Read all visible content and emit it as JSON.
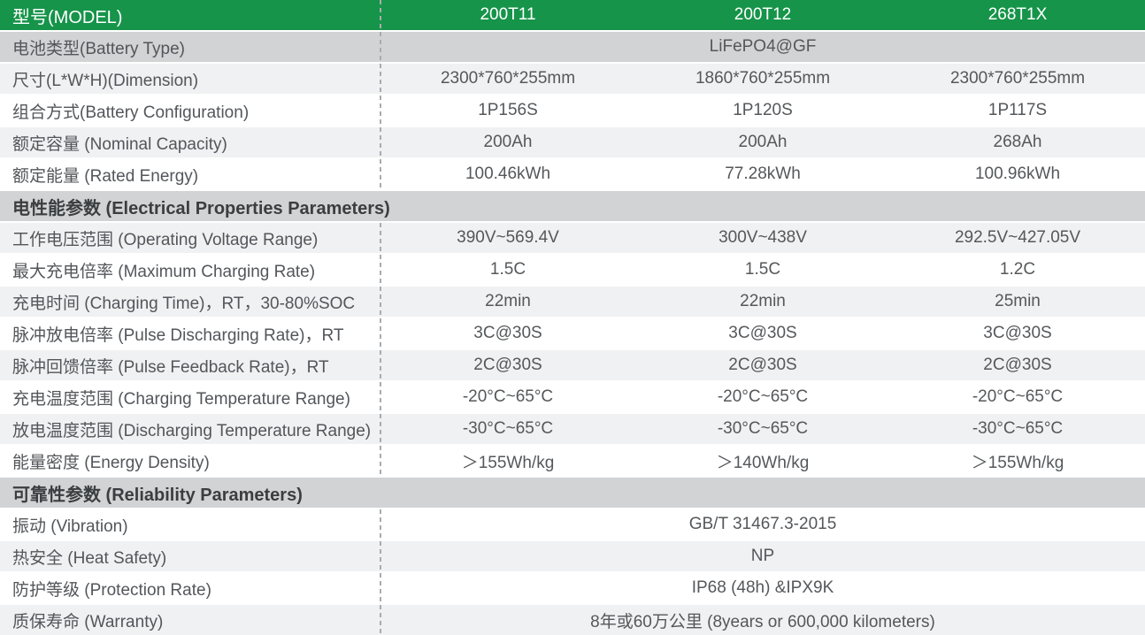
{
  "colors": {
    "header_green": "#16944A",
    "section_gray": "#d1d3d5",
    "row_alt": "#eff1f3",
    "row_white": "#ffffff",
    "dash_line": "#a9acae",
    "header_text": "#ffffff",
    "label_text": "#53565a",
    "value_text": "#55585b",
    "section_text": "#3b3e40"
  },
  "header": {
    "label": "型号(MODEL)",
    "models": [
      "200T11",
      "200T12",
      "268T1X"
    ]
  },
  "rows": [
    {
      "label": "电池类型(Battery Type)",
      "value": "LiFePO4@GF"
    },
    {
      "label": "尺寸(L*W*H)(Dimension)",
      "values": [
        "2300*760*255mm",
        "1860*760*255mm",
        "2300*760*255mm"
      ]
    },
    {
      "label": "组合方式(Battery Configuration)",
      "values": [
        "1P156S",
        "1P120S",
        "1P117S"
      ]
    },
    {
      "label": "额定容量 (Nominal Capacity)",
      "values": [
        "200Ah",
        "200Ah",
        "268Ah"
      ]
    },
    {
      "label": "额定能量 (Rated Energy)",
      "values": [
        "100.46kWh",
        "77.28kWh",
        "100.96kWh"
      ]
    },
    {
      "section": "电性能参数 (Electrical Properties Parameters)"
    },
    {
      "label": "工作电压范围 (Operating Voltage Range)",
      "values": [
        "390V~569.4V",
        "300V~438V",
        "292.5V~427.05V"
      ]
    },
    {
      "label": "最大充电倍率 (Maximum Charging Rate)",
      "values": [
        "1.5C",
        "1.5C",
        "1.2C"
      ]
    },
    {
      "label": "充电时间 (Charging Time)，RT，30-80%SOC",
      "values": [
        "22min",
        "22min",
        "25min"
      ]
    },
    {
      "label": "脉冲放电倍率 (Pulse Discharging Rate)，RT",
      "values": [
        "3C@30S",
        "3C@30S",
        "3C@30S"
      ]
    },
    {
      "label": "脉冲回馈倍率 (Pulse Feedback Rate)，RT",
      "values": [
        "2C@30S",
        "2C@30S",
        "2C@30S"
      ]
    },
    {
      "label": "充电温度范围 (Charging Temperature Range)",
      "values": [
        "-20°C~65°C",
        "-20°C~65°C",
        "-20°C~65°C"
      ]
    },
    {
      "label": "放电温度范围 (Discharging Temperature Range)",
      "values": [
        "-30°C~65°C",
        "-30°C~65°C",
        "-30°C~65°C"
      ]
    },
    {
      "label": "能量密度 (Energy Density)",
      "values": [
        "＞155Wh/kg",
        "＞140Wh/kg",
        "＞155Wh/kg"
      ]
    },
    {
      "section": "可靠性参数 (Reliability Parameters)"
    },
    {
      "label": "振动 (Vibration)",
      "value": "GB/T 31467.3-2015"
    },
    {
      "label": "热安全 (Heat Safety)",
      "value": "NP"
    },
    {
      "label": "防护等级 (Protection Rate)",
      "value": "IP68 (48h) &IPX9K"
    },
    {
      "label": "质保寿命 (Warranty)",
      "value": "8年或60万公里 (8years or 600,000 kilometers)"
    }
  ]
}
